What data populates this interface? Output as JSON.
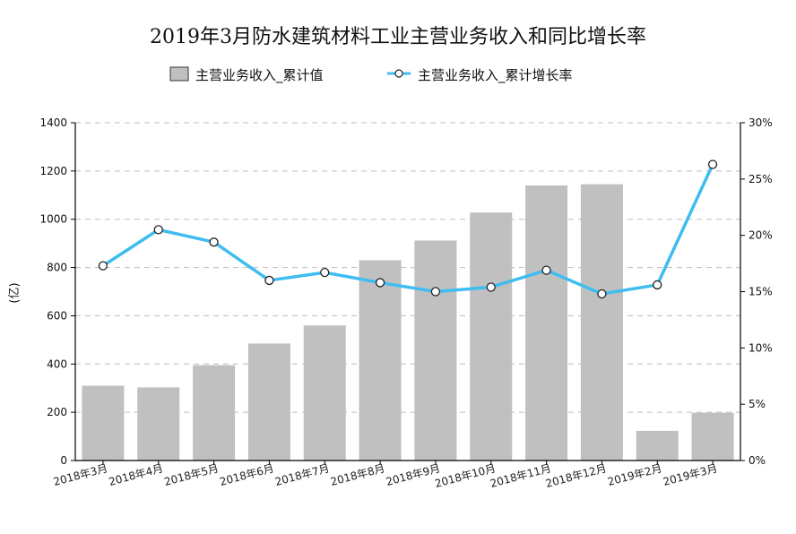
{
  "chart_data": {
    "type": "bar",
    "title": "2019年3月防水建筑材料工业主营业务收入和同比增长率",
    "ylabel": "(亿)",
    "y2label": "",
    "categories": [
      "2018年3月",
      "2018年4月",
      "2018年5月",
      "2018年6月",
      "2018年7月",
      "2018年8月",
      "2018年9月",
      "2018年10月",
      "2018年11月",
      "2018年12月",
      "2019年2月",
      "2019年3月"
    ],
    "ylim": [
      0,
      1400
    ],
    "yticks": [
      "0",
      "200",
      "400",
      "600",
      "800",
      "1000",
      "1200",
      "1400"
    ],
    "y2lim": [
      0,
      30
    ],
    "y2ticks": [
      "0%",
      "5%",
      "10%",
      "15%",
      "20%",
      "25%",
      "30%"
    ],
    "grid": true,
    "legend_position": "top-center",
    "series": [
      {
        "name": "主营业务收入_累计值",
        "type": "bar",
        "axis": "left",
        "color": "#c0c0c0",
        "values": [
          310,
          303,
          395,
          485,
          560,
          830,
          912,
          1028,
          1140,
          1145,
          123,
          198
        ]
      },
      {
        "name": "主营业务收入_累计增长率",
        "type": "line",
        "axis": "right",
        "color": "#3fbdf0",
        "values": [
          17.3,
          20.5,
          19.4,
          16.0,
          16.7,
          15.8,
          15.0,
          15.4,
          16.9,
          14.8,
          15.6,
          26.3
        ]
      }
    ]
  }
}
